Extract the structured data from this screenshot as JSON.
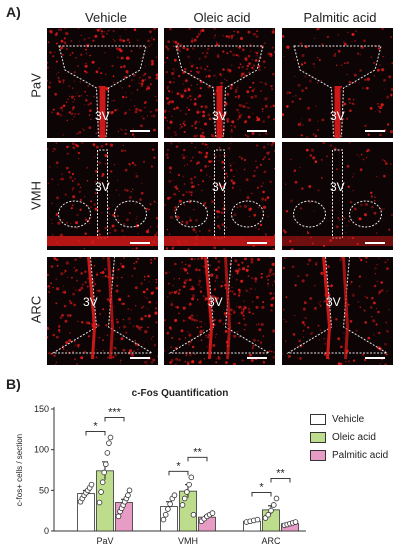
{
  "panel_a_label": "A)",
  "panel_b_label": "B)",
  "columns": [
    "Vehicle",
    "Oleic acid",
    "Palmitic acid"
  ],
  "rows": [
    "PaV",
    "VMH",
    "ARC"
  ],
  "ventricle_label": "3V",
  "colors": {
    "vehicle": "#ffffff",
    "oleic": "#bedd8c",
    "palmitic": "#e79cc6",
    "signal": "#e01b1b"
  },
  "chart_data": {
    "type": "bar",
    "title": "c-Fos Quantification",
    "ylabel": "c-fos+ cells / section",
    "xlabel": "",
    "categories": [
      "PaV",
      "VMH",
      "ARC"
    ],
    "ylim": [
      0,
      150
    ],
    "yticks": [
      0,
      50,
      100,
      150
    ],
    "series": [
      {
        "name": "Vehicle",
        "values": [
          46,
          30,
          12
        ],
        "errors": [
          4,
          6,
          1
        ],
        "points": [
          [
            36,
            40,
            44,
            47,
            50,
            53,
            57
          ],
          [
            14,
            20,
            27,
            33,
            40,
            44
          ],
          [
            11,
            12,
            13,
            14
          ]
        ]
      },
      {
        "name": "Oleic acid",
        "values": [
          74,
          49,
          26
        ],
        "errors": [
          11,
          8,
          5
        ],
        "points": [
          [
            35,
            48,
            60,
            72,
            82,
            96,
            108,
            115
          ],
          [
            32,
            40,
            48,
            57,
            66,
            20
          ],
          [
            16,
            20,
            25,
            32,
            40
          ]
        ]
      },
      {
        "name": "Palmitic acid",
        "values": [
          35,
          17,
          9
        ],
        "errors": [
          4,
          2,
          1
        ],
        "points": [
          [
            18,
            24,
            28,
            32,
            36,
            40,
            44,
            50
          ],
          [
            12,
            15,
            18,
            20,
            22
          ],
          [
            7,
            8,
            9,
            10,
            11
          ]
        ]
      }
    ],
    "significance": [
      {
        "category": "PaV",
        "pairs": [
          [
            "Vehicle",
            "Oleic acid",
            "*"
          ],
          [
            "Oleic acid",
            "Palmitic acid",
            "***"
          ]
        ]
      },
      {
        "category": "VMH",
        "pairs": [
          [
            "Vehicle",
            "Oleic acid",
            "*"
          ],
          [
            "Oleic acid",
            "Palmitic acid",
            "**"
          ]
        ]
      },
      {
        "category": "ARC",
        "pairs": [
          [
            "Vehicle",
            "Oleic acid",
            "*"
          ],
          [
            "Oleic acid",
            "Palmitic acid",
            "**"
          ]
        ]
      }
    ],
    "legend_position": "top-right",
    "grid": false
  }
}
